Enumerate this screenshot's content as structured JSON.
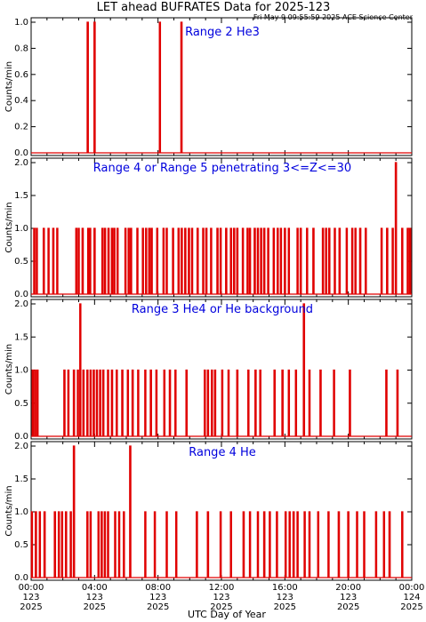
{
  "header": {
    "title": "LET ahead BUFRATES Data for 2025-123",
    "timestamp": "Fri May  9 09:55:59 2025 ACE Science Center"
  },
  "xaxis": {
    "label": "UTC Day of Year",
    "ticks": [
      {
        "time": "00:00",
        "doy": "123",
        "year": "2025"
      },
      {
        "time": "04:00",
        "doy": "123",
        "year": "2025"
      },
      {
        "time": "08:00",
        "doy": "123",
        "year": "2025"
      },
      {
        "time": "12:00",
        "doy": "123",
        "year": "2025"
      },
      {
        "time": "16:00",
        "doy": "123",
        "year": "2025"
      },
      {
        "time": "20:00",
        "doy": "123",
        "year": "2025"
      },
      {
        "time": "00:00",
        "doy": "124",
        "year": "2025"
      }
    ]
  },
  "colors": {
    "line": "#e00000",
    "title": "#0000dd",
    "axes": "#000000"
  },
  "chart_data": [
    {
      "type": "line",
      "title": "Range 2 He3",
      "ylabel": "Counts/min",
      "xlim": [
        0,
        24
      ],
      "ylim": [
        0,
        1.0
      ],
      "yticks": [
        "0.0",
        "0.2",
        "0.4",
        "0.6",
        "0.8",
        "1.0"
      ],
      "yvals": [
        0,
        0.2,
        0.4,
        0.6,
        0.8,
        1.0
      ],
      "spikes": [
        {
          "t": 3.57,
          "v": 1
        },
        {
          "t": 4.0,
          "v": 1
        },
        {
          "t": 8.12,
          "v": 1
        },
        {
          "t": 9.48,
          "v": 1
        }
      ]
    },
    {
      "type": "line",
      "title": "Range 4 or Range 5 penetrating 3<=Z<=30",
      "ylabel": "Counts/min",
      "xlim": [
        0,
        24
      ],
      "ylim": [
        0,
        2.0
      ],
      "yticks": [
        "0.0",
        "0.5",
        "1.0",
        "1.5",
        "2.0"
      ],
      "yvals": [
        0,
        0.5,
        1.0,
        1.5,
        2.0
      ],
      "spikes": [
        {
          "t": 0.2,
          "v": 1
        },
        {
          "t": 0.36,
          "v": 1
        },
        {
          "t": 0.8,
          "v": 1
        },
        {
          "t": 1.1,
          "v": 1
        },
        {
          "t": 1.4,
          "v": 1
        },
        {
          "t": 1.65,
          "v": 1
        },
        {
          "t": 2.85,
          "v": 1
        },
        {
          "t": 3.0,
          "v": 1
        },
        {
          "t": 3.25,
          "v": 1
        },
        {
          "t": 3.6,
          "v": 1
        },
        {
          "t": 3.72,
          "v": 1
        },
        {
          "t": 4.0,
          "v": 1
        },
        {
          "t": 4.5,
          "v": 1
        },
        {
          "t": 4.66,
          "v": 1
        },
        {
          "t": 4.88,
          "v": 1
        },
        {
          "t": 5.1,
          "v": 1
        },
        {
          "t": 5.25,
          "v": 1
        },
        {
          "t": 5.45,
          "v": 1
        },
        {
          "t": 5.95,
          "v": 1
        },
        {
          "t": 6.15,
          "v": 1
        },
        {
          "t": 6.3,
          "v": 1
        },
        {
          "t": 6.7,
          "v": 1
        },
        {
          "t": 7.05,
          "v": 1
        },
        {
          "t": 7.25,
          "v": 1
        },
        {
          "t": 7.45,
          "v": 1
        },
        {
          "t": 7.6,
          "v": 1
        },
        {
          "t": 7.95,
          "v": 1
        },
        {
          "t": 8.35,
          "v": 1
        },
        {
          "t": 8.55,
          "v": 1
        },
        {
          "t": 8.95,
          "v": 1
        },
        {
          "t": 9.3,
          "v": 1
        },
        {
          "t": 9.5,
          "v": 1
        },
        {
          "t": 9.72,
          "v": 1
        },
        {
          "t": 9.95,
          "v": 1
        },
        {
          "t": 10.15,
          "v": 1
        },
        {
          "t": 10.5,
          "v": 1
        },
        {
          "t": 10.85,
          "v": 1
        },
        {
          "t": 11.05,
          "v": 1
        },
        {
          "t": 11.35,
          "v": 1
        },
        {
          "t": 11.75,
          "v": 1
        },
        {
          "t": 11.95,
          "v": 1
        },
        {
          "t": 12.3,
          "v": 1
        },
        {
          "t": 12.6,
          "v": 1
        },
        {
          "t": 12.8,
          "v": 1
        },
        {
          "t": 13.0,
          "v": 1
        },
        {
          "t": 13.35,
          "v": 1
        },
        {
          "t": 13.65,
          "v": 1
        },
        {
          "t": 13.8,
          "v": 1
        },
        {
          "t": 14.1,
          "v": 1
        },
        {
          "t": 14.3,
          "v": 1
        },
        {
          "t": 14.5,
          "v": 1
        },
        {
          "t": 14.7,
          "v": 1
        },
        {
          "t": 14.95,
          "v": 1
        },
        {
          "t": 15.3,
          "v": 1
        },
        {
          "t": 15.55,
          "v": 1
        },
        {
          "t": 15.75,
          "v": 1
        },
        {
          "t": 16.0,
          "v": 1
        },
        {
          "t": 16.25,
          "v": 1
        },
        {
          "t": 16.8,
          "v": 1
        },
        {
          "t": 17.0,
          "v": 1
        },
        {
          "t": 17.4,
          "v": 1
        },
        {
          "t": 17.8,
          "v": 1
        },
        {
          "t": 18.4,
          "v": 1
        },
        {
          "t": 18.6,
          "v": 1
        },
        {
          "t": 18.8,
          "v": 1
        },
        {
          "t": 19.15,
          "v": 1
        },
        {
          "t": 19.45,
          "v": 1
        },
        {
          "t": 19.9,
          "v": 1
        },
        {
          "t": 20.25,
          "v": 1
        },
        {
          "t": 20.45,
          "v": 1
        },
        {
          "t": 20.75,
          "v": 1
        },
        {
          "t": 21.1,
          "v": 1
        },
        {
          "t": 22.1,
          "v": 1
        },
        {
          "t": 22.45,
          "v": 1
        },
        {
          "t": 22.8,
          "v": 1
        },
        {
          "t": 23.0,
          "v": 2
        },
        {
          "t": 23.4,
          "v": 1
        },
        {
          "t": 23.75,
          "v": 1
        },
        {
          "t": 23.9,
          "v": 1
        }
      ]
    },
    {
      "type": "line",
      "title": "Range 3 He4 or He background",
      "ylabel": "Counts/min",
      "xlim": [
        0,
        24
      ],
      "ylim": [
        0,
        2.0
      ],
      "yticks": [
        "0.0",
        "0.5",
        "1.0",
        "1.5",
        "2.0"
      ],
      "yvals": [
        0,
        0.5,
        1.0,
        1.5,
        2.0
      ],
      "spikes": [
        {
          "t": 0.1,
          "v": 1
        },
        {
          "t": 0.25,
          "v": 1
        },
        {
          "t": 0.4,
          "v": 1
        },
        {
          "t": 2.1,
          "v": 1
        },
        {
          "t": 2.35,
          "v": 1
        },
        {
          "t": 2.7,
          "v": 1
        },
        {
          "t": 2.95,
          "v": 1
        },
        {
          "t": 3.1,
          "v": 2
        },
        {
          "t": 3.3,
          "v": 1
        },
        {
          "t": 3.55,
          "v": 1
        },
        {
          "t": 3.75,
          "v": 1
        },
        {
          "t": 3.95,
          "v": 1
        },
        {
          "t": 4.15,
          "v": 1
        },
        {
          "t": 4.35,
          "v": 1
        },
        {
          "t": 4.55,
          "v": 1
        },
        {
          "t": 4.85,
          "v": 1
        },
        {
          "t": 5.1,
          "v": 1
        },
        {
          "t": 5.4,
          "v": 1
        },
        {
          "t": 5.75,
          "v": 1
        },
        {
          "t": 6.1,
          "v": 1
        },
        {
          "t": 6.4,
          "v": 1
        },
        {
          "t": 6.75,
          "v": 1
        },
        {
          "t": 7.2,
          "v": 1
        },
        {
          "t": 7.55,
          "v": 1
        },
        {
          "t": 7.9,
          "v": 1
        },
        {
          "t": 8.4,
          "v": 1
        },
        {
          "t": 8.75,
          "v": 1
        },
        {
          "t": 9.1,
          "v": 1
        },
        {
          "t": 9.8,
          "v": 1
        },
        {
          "t": 10.95,
          "v": 1
        },
        {
          "t": 11.15,
          "v": 1
        },
        {
          "t": 11.4,
          "v": 1
        },
        {
          "t": 11.6,
          "v": 1
        },
        {
          "t": 12.05,
          "v": 1
        },
        {
          "t": 12.45,
          "v": 1
        },
        {
          "t": 13.0,
          "v": 1
        },
        {
          "t": 13.7,
          "v": 1
        },
        {
          "t": 14.15,
          "v": 1
        },
        {
          "t": 14.45,
          "v": 1
        },
        {
          "t": 15.35,
          "v": 1
        },
        {
          "t": 15.85,
          "v": 1
        },
        {
          "t": 16.25,
          "v": 1
        },
        {
          "t": 16.7,
          "v": 1
        },
        {
          "t": 17.2,
          "v": 2
        },
        {
          "t": 17.55,
          "v": 1
        },
        {
          "t": 18.25,
          "v": 1
        },
        {
          "t": 19.1,
          "v": 1
        },
        {
          "t": 20.1,
          "v": 1
        },
        {
          "t": 22.4,
          "v": 1
        },
        {
          "t": 23.1,
          "v": 1
        }
      ]
    },
    {
      "type": "line",
      "title": "Range 4 He",
      "ylabel": "Counts/min",
      "xlim": [
        0,
        24
      ],
      "ylim": [
        0,
        2.0
      ],
      "yticks": [
        "0.0",
        "0.5",
        "1.0",
        "1.5",
        "2.0"
      ],
      "yvals": [
        0,
        0.5,
        1.0,
        1.5,
        2.0
      ],
      "spikes": [
        {
          "t": 0.05,
          "v": 1
        },
        {
          "t": 0.3,
          "v": 1
        },
        {
          "t": 0.55,
          "v": 1
        },
        {
          "t": 0.85,
          "v": 1
        },
        {
          "t": 1.5,
          "v": 1
        },
        {
          "t": 1.75,
          "v": 1
        },
        {
          "t": 1.95,
          "v": 1
        },
        {
          "t": 2.2,
          "v": 1
        },
        {
          "t": 2.5,
          "v": 1
        },
        {
          "t": 2.7,
          "v": 2
        },
        {
          "t": 3.55,
          "v": 1
        },
        {
          "t": 3.75,
          "v": 1
        },
        {
          "t": 4.25,
          "v": 1
        },
        {
          "t": 4.45,
          "v": 1
        },
        {
          "t": 4.65,
          "v": 1
        },
        {
          "t": 4.85,
          "v": 1
        },
        {
          "t": 5.3,
          "v": 1
        },
        {
          "t": 5.55,
          "v": 1
        },
        {
          "t": 5.85,
          "v": 1
        },
        {
          "t": 6.25,
          "v": 2
        },
        {
          "t": 7.2,
          "v": 1
        },
        {
          "t": 7.8,
          "v": 1
        },
        {
          "t": 8.55,
          "v": 1
        },
        {
          "t": 9.15,
          "v": 1
        },
        {
          "t": 10.45,
          "v": 1
        },
        {
          "t": 11.15,
          "v": 1
        },
        {
          "t": 11.95,
          "v": 1
        },
        {
          "t": 12.6,
          "v": 1
        },
        {
          "t": 13.4,
          "v": 1
        },
        {
          "t": 13.8,
          "v": 1
        },
        {
          "t": 14.3,
          "v": 1
        },
        {
          "t": 14.7,
          "v": 1
        },
        {
          "t": 15.05,
          "v": 1
        },
        {
          "t": 15.5,
          "v": 1
        },
        {
          "t": 16.05,
          "v": 1
        },
        {
          "t": 16.3,
          "v": 1
        },
        {
          "t": 16.55,
          "v": 1
        },
        {
          "t": 16.8,
          "v": 1
        },
        {
          "t": 17.25,
          "v": 1
        },
        {
          "t": 17.55,
          "v": 1
        },
        {
          "t": 18.1,
          "v": 1
        },
        {
          "t": 18.75,
          "v": 1
        },
        {
          "t": 19.4,
          "v": 1
        },
        {
          "t": 20.0,
          "v": 1
        },
        {
          "t": 20.55,
          "v": 1
        },
        {
          "t": 21.0,
          "v": 1
        },
        {
          "t": 21.75,
          "v": 1
        },
        {
          "t": 22.25,
          "v": 1
        },
        {
          "t": 22.6,
          "v": 1
        },
        {
          "t": 23.4,
          "v": 1
        }
      ]
    }
  ]
}
